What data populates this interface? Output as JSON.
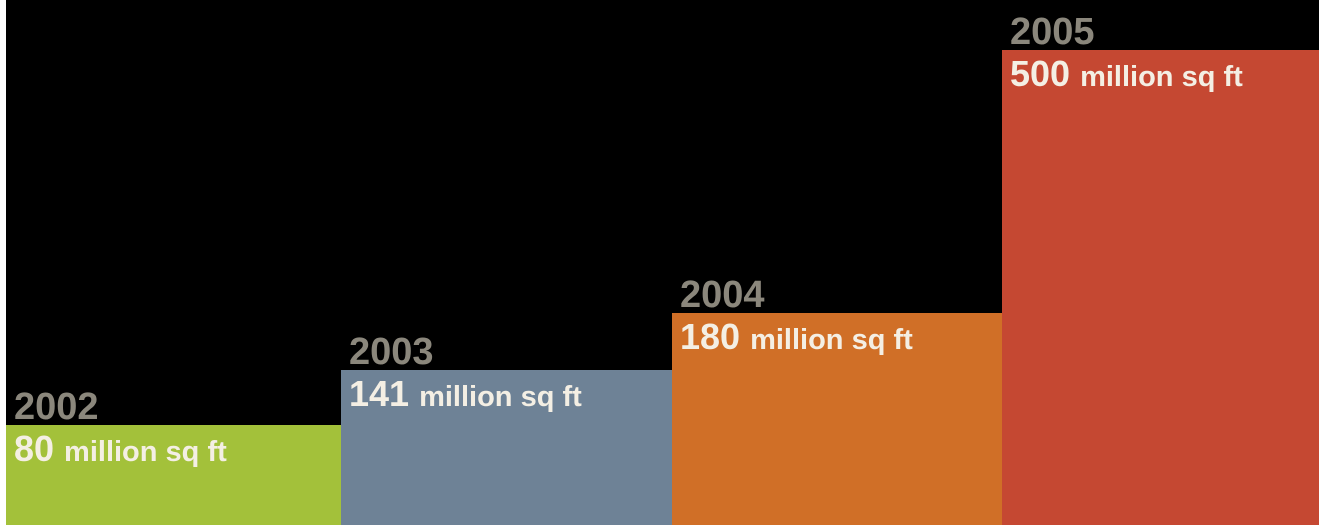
{
  "chart_data": {
    "type": "bar",
    "categories": [
      "2002",
      "2003",
      "2004",
      "2005"
    ],
    "values": [
      80,
      141,
      180,
      500
    ],
    "value_labels": [
      "80",
      "141",
      "180",
      "500"
    ],
    "unit_label": "million sq ft",
    "colors": [
      "#a3c13a",
      "#6e8296",
      "#d06f27",
      "#c54832"
    ],
    "background": "#000000",
    "year_label_color": "#8b877c",
    "value_label_color": "#f4efe4",
    "legend": "none",
    "grid": false
  }
}
